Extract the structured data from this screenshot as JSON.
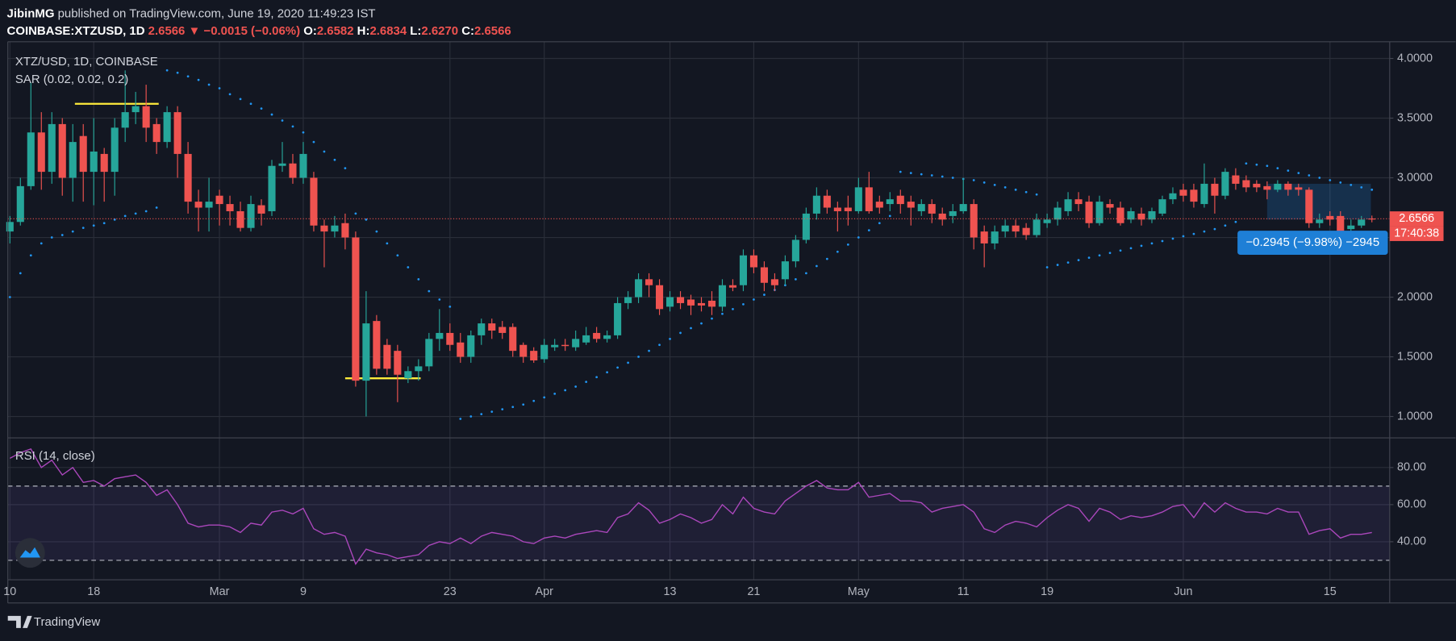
{
  "header": {
    "author": "JibinMG",
    "published": "published on TradingView.com, June 19, 2020 11:49:23 IST",
    "symbol": "COINBASE:XTZUSD, 1D",
    "last": "2.6566",
    "change": "▼ −0.0015 (−0.06%)",
    "open_label": "O:",
    "open": "2.6582",
    "high_label": "H:",
    "high": "2.6834",
    "low_label": "L:",
    "low": "2.6270",
    "close_label": "C:",
    "close": "2.6566"
  },
  "footer": {
    "brand": "TradingView"
  },
  "chart_data": [
    {
      "type": "candlestick",
      "title": "XTZ/USD, 1D, COINBASE",
      "up_color": "#26a69a",
      "down_color": "#ef5350",
      "open": [
        2.55,
        2.63,
        2.93,
        3.38,
        3.05,
        3.45,
        3.0,
        3.35,
        3.05,
        3.2,
        3.05,
        3.42,
        3.55,
        3.6,
        3.45,
        3.3,
        3.55,
        3.2,
        2.8,
        2.75,
        2.85,
        2.78,
        2.72,
        2.58,
        2.77,
        2.72,
        3.1,
        3.12,
        3.0,
        3.0,
        2.6,
        2.55,
        2.62,
        2.5,
        1.3,
        1.8,
        1.6,
        1.55,
        1.32,
        1.38,
        1.42,
        1.65,
        1.7,
        1.62,
        1.5,
        1.68,
        1.78,
        1.75,
        1.75,
        1.6,
        1.55,
        1.48,
        1.58,
        1.6,
        1.58,
        1.62,
        1.7,
        1.65,
        1.68,
        1.95,
        2.0,
        2.15,
        2.1,
        1.92,
        2.0,
        1.98,
        1.95,
        1.97,
        1.92,
        2.1,
        2.1,
        2.35,
        2.25,
        2.15,
        2.15,
        2.3,
        2.48,
        2.7,
        2.85,
        2.75,
        2.75,
        2.72,
        2.92,
        2.8,
        2.78,
        2.85,
        2.8,
        2.72,
        2.78,
        2.7,
        2.68,
        2.72,
        2.78,
        2.55,
        2.45,
        2.55,
        2.6,
        2.58,
        2.52,
        2.62,
        2.65,
        2.72,
        2.82,
        2.8,
        2.62,
        2.78,
        2.75,
        2.65,
        2.7,
        2.65,
        2.7,
        2.82,
        2.9,
        2.9,
        2.78,
        2.95,
        2.85,
        3.02,
        2.98,
        2.95,
        2.93,
        2.9,
        2.95,
        2.92,
        2.9,
        2.62,
        2.68,
        2.68,
        2.57,
        2.6,
        2.6582
      ],
      "high": [
        2.68,
        3.0,
        3.8,
        3.55,
        3.55,
        3.5,
        3.45,
        3.45,
        3.5,
        3.25,
        3.5,
        3.9,
        3.72,
        3.78,
        3.5,
        3.6,
        3.6,
        3.3,
        2.9,
        3.0,
        2.9,
        2.85,
        2.8,
        2.85,
        2.82,
        3.15,
        3.3,
        3.2,
        3.3,
        3.05,
        2.65,
        2.68,
        2.7,
        2.55,
        2.05,
        1.85,
        1.65,
        1.6,
        1.42,
        1.48,
        1.7,
        1.9,
        1.78,
        1.7,
        1.72,
        1.82,
        1.82,
        1.8,
        1.78,
        1.62,
        1.58,
        1.65,
        1.65,
        1.65,
        1.72,
        1.75,
        1.75,
        1.72,
        2.0,
        2.05,
        2.2,
        2.2,
        2.15,
        2.05,
        2.05,
        2.02,
        2.0,
        2.05,
        2.15,
        2.15,
        2.4,
        2.4,
        2.3,
        2.2,
        2.35,
        2.52,
        2.75,
        2.92,
        2.9,
        2.8,
        2.85,
        3.0,
        3.05,
        2.85,
        2.88,
        2.9,
        2.85,
        2.82,
        2.82,
        2.75,
        2.78,
        3.0,
        2.82,
        2.6,
        2.6,
        2.65,
        2.65,
        2.62,
        2.7,
        2.7,
        2.8,
        2.88,
        2.88,
        2.85,
        2.85,
        2.82,
        2.8,
        2.75,
        2.75,
        2.75,
        2.85,
        2.92,
        2.95,
        2.95,
        3.12,
        3.0,
        3.08,
        3.08,
        3.02,
        2.98,
        2.97,
        2.98,
        2.97,
        2.95,
        2.92,
        2.7,
        2.72,
        2.72,
        2.65,
        2.68,
        2.6834
      ],
      "low": [
        2.45,
        2.6,
        2.9,
        2.9,
        2.95,
        2.85,
        2.8,
        2.8,
        2.77,
        2.8,
        2.85,
        3.3,
        3.45,
        3.3,
        3.2,
        3.25,
        3.0,
        2.7,
        2.55,
        2.55,
        2.6,
        2.6,
        2.55,
        2.55,
        2.6,
        2.68,
        3.05,
        2.95,
        2.95,
        2.55,
        2.25,
        2.5,
        2.4,
        1.25,
        1.0,
        1.35,
        1.35,
        1.12,
        1.28,
        1.3,
        1.38,
        1.55,
        1.55,
        1.45,
        1.45,
        1.6,
        1.65,
        1.65,
        1.5,
        1.45,
        1.45,
        1.45,
        1.55,
        1.55,
        1.55,
        1.6,
        1.62,
        1.62,
        1.65,
        1.9,
        1.95,
        2.0,
        1.85,
        1.88,
        1.9,
        1.85,
        1.88,
        1.85,
        1.88,
        2.05,
        2.05,
        2.2,
        2.05,
        2.05,
        2.1,
        2.25,
        2.45,
        2.65,
        2.7,
        2.55,
        2.6,
        2.7,
        2.7,
        2.7,
        2.72,
        2.7,
        2.6,
        2.68,
        2.62,
        2.6,
        2.62,
        2.7,
        2.4,
        2.25,
        2.4,
        2.5,
        2.5,
        2.48,
        2.5,
        2.58,
        2.6,
        2.68,
        2.72,
        2.58,
        2.6,
        2.7,
        2.6,
        2.62,
        2.6,
        2.62,
        2.68,
        2.78,
        2.8,
        2.75,
        2.75,
        2.7,
        2.82,
        2.9,
        2.88,
        2.88,
        2.82,
        2.88,
        2.85,
        2.85,
        2.58,
        2.58,
        2.6,
        2.52,
        2.55,
        2.58,
        2.627
      ],
      "close": [
        2.63,
        2.93,
        3.38,
        3.05,
        3.45,
        3.0,
        3.3,
        3.05,
        3.22,
        3.05,
        3.42,
        3.55,
        3.6,
        3.42,
        3.3,
        3.55,
        3.2,
        2.8,
        2.75,
        2.8,
        2.78,
        2.72,
        2.58,
        2.78,
        2.7,
        3.1,
        3.12,
        3.0,
        3.2,
        2.6,
        2.55,
        2.6,
        2.5,
        1.3,
        1.78,
        1.4,
        1.4,
        1.35,
        1.38,
        1.42,
        1.65,
        1.7,
        1.6,
        1.5,
        1.68,
        1.78,
        1.72,
        1.7,
        1.55,
        1.5,
        1.47,
        1.6,
        1.6,
        1.59,
        1.65,
        1.68,
        1.65,
        1.68,
        1.95,
        2.0,
        2.15,
        2.1,
        1.9,
        2.0,
        1.95,
        1.93,
        1.93,
        1.92,
        2.1,
        2.08,
        2.35,
        2.25,
        2.12,
        2.1,
        2.3,
        2.48,
        2.7,
        2.85,
        2.75,
        2.72,
        2.72,
        2.92,
        2.72,
        2.75,
        2.82,
        2.78,
        2.75,
        2.78,
        2.7,
        2.65,
        2.72,
        2.78,
        2.5,
        2.45,
        2.55,
        2.6,
        2.55,
        2.52,
        2.65,
        2.65,
        2.75,
        2.82,
        2.78,
        2.62,
        2.8,
        2.75,
        2.62,
        2.72,
        2.65,
        2.72,
        2.82,
        2.87,
        2.85,
        2.8,
        2.95,
        2.85,
        3.05,
        2.95,
        2.92,
        2.92,
        2.9,
        2.95,
        2.9,
        2.9,
        2.62,
        2.65,
        2.65,
        2.55,
        2.6,
        2.65,
        2.6566
      ],
      "sar": {
        "name": "SAR (0.02, 0.02, 0.2)",
        "color": "#2196f3",
        "values": [
          2.0,
          2.2,
          2.35,
          2.45,
          2.5,
          2.52,
          2.55,
          2.58,
          2.6,
          2.62,
          2.65,
          2.68,
          2.7,
          2.72,
          2.75,
          3.9,
          3.88,
          3.85,
          3.82,
          3.78,
          3.75,
          3.7,
          3.66,
          3.62,
          3.58,
          3.53,
          3.48,
          3.43,
          3.38,
          3.3,
          3.22,
          3.15,
          3.08,
          2.7,
          2.65,
          2.55,
          2.45,
          2.35,
          2.25,
          2.15,
          2.05,
          1.98,
          1.92,
          0.98,
          1.0,
          1.02,
          1.04,
          1.06,
          1.08,
          1.1,
          1.13,
          1.16,
          1.19,
          1.22,
          1.25,
          1.29,
          1.33,
          1.37,
          1.41,
          1.45,
          1.5,
          1.55,
          1.6,
          1.65,
          1.7,
          1.74,
          1.78,
          1.82,
          1.86,
          1.9,
          1.94,
          1.98,
          2.02,
          2.06,
          2.1,
          2.15,
          2.2,
          2.26,
          2.32,
          2.38,
          2.44,
          2.5,
          2.56,
          2.62,
          2.68,
          3.05,
          3.04,
          3.03,
          3.02,
          3.01,
          3.0,
          2.99,
          2.98,
          2.96,
          2.94,
          2.92,
          2.9,
          2.88,
          2.86,
          2.25,
          2.27,
          2.29,
          2.31,
          2.33,
          2.35,
          2.37,
          2.39,
          2.41,
          2.43,
          2.45,
          2.47,
          2.49,
          2.51,
          2.53,
          2.55,
          2.57,
          2.6,
          2.63,
          3.12,
          3.11,
          3.1,
          3.08,
          3.06,
          3.04,
          3.02,
          3.0,
          2.98,
          2.96,
          2.94,
          2.92,
          2.9
        ]
      },
      "xlim": [
        -0.2,
        131.7
      ],
      "xticks": [
        {
          "value": 0,
          "label": "10"
        },
        {
          "value": 8,
          "label": "18"
        },
        {
          "value": 20,
          "label": "Mar"
        },
        {
          "value": 28,
          "label": "9"
        },
        {
          "value": 42,
          "label": "23"
        },
        {
          "value": 51,
          "label": "Apr"
        },
        {
          "value": 63,
          "label": "13"
        },
        {
          "value": 71,
          "label": "21"
        },
        {
          "value": 81,
          "label": "May"
        },
        {
          "value": 91,
          "label": "11"
        },
        {
          "value": 99,
          "label": "19"
        },
        {
          "value": 112,
          "label": "Jun"
        },
        {
          "value": 126,
          "label": "15"
        }
      ],
      "ylim": [
        0.821,
        4.14
      ],
      "yticks": [
        {
          "value": 1,
          "label": "1.0000"
        },
        {
          "value": 1.5,
          "label": "1.5000"
        },
        {
          "value": 2,
          "label": "2.0000"
        },
        {
          "value": 2.5,
          "label": "2.5000"
        },
        {
          "value": 3,
          "label": "3.0000"
        },
        {
          "value": 3.5,
          "label": "3.5000"
        },
        {
          "value": 4,
          "label": "4.0000"
        }
      ],
      "grid": true,
      "last_price_label": "2.6566",
      "countdown": "17:40:38",
      "trend_lines": [
        {
          "price": 3.62,
          "from": 6.2,
          "to": 14.2,
          "color": "#ffeb3b"
        },
        {
          "price": 1.32,
          "from": 32,
          "to": 39.2,
          "color": "#ffeb3b"
        }
      ],
      "measure": {
        "from": 120,
        "to": 129.9,
        "top": 2.95,
        "bottom": 2.65,
        "color": "#2196f3",
        "label": "−0.2945 (−9.98%) −2945"
      }
    },
    {
      "type": "line",
      "series": [
        {
          "name": "RSI (14, close)",
          "color": "#ab47bc",
          "values": [
            85,
            88,
            90,
            80,
            84,
            76,
            80,
            72,
            73,
            70,
            74,
            75,
            76,
            72,
            65,
            68,
            60,
            50,
            48,
            49,
            49,
            48,
            45,
            50,
            49,
            56,
            57,
            55,
            58,
            47,
            44,
            45,
            43,
            28,
            36,
            34,
            33,
            31,
            32,
            33,
            38,
            40,
            39,
            42,
            39,
            43,
            45,
            44,
            43,
            40,
            39,
            42,
            43,
            42,
            44,
            45,
            46,
            45,
            53,
            55,
            61,
            57,
            50,
            52,
            55,
            53,
            50,
            52,
            60,
            55,
            64,
            58,
            56,
            55,
            62,
            66,
            70,
            73,
            69,
            68,
            68,
            72,
            64,
            65,
            66,
            62,
            62,
            61,
            56,
            58,
            59,
            60,
            56,
            47,
            45,
            49,
            51,
            50,
            48,
            53,
            57,
            60,
            58,
            51,
            58,
            56,
            52,
            54,
            53,
            54,
            56,
            59,
            60,
            53,
            61,
            56,
            61,
            58,
            56,
            56,
            55,
            58,
            56,
            56,
            44,
            46,
            47,
            42,
            44,
            44,
            45
          ]
        }
      ],
      "ylim": [
        19.5,
        96
      ],
      "yticks": [
        {
          "value": 40,
          "label": "40.00"
        },
        {
          "value": 60,
          "label": "60.00"
        },
        {
          "value": 80,
          "label": "80.00"
        }
      ],
      "band": [
        30,
        70
      ],
      "band_color": "#7e57c2"
    }
  ]
}
